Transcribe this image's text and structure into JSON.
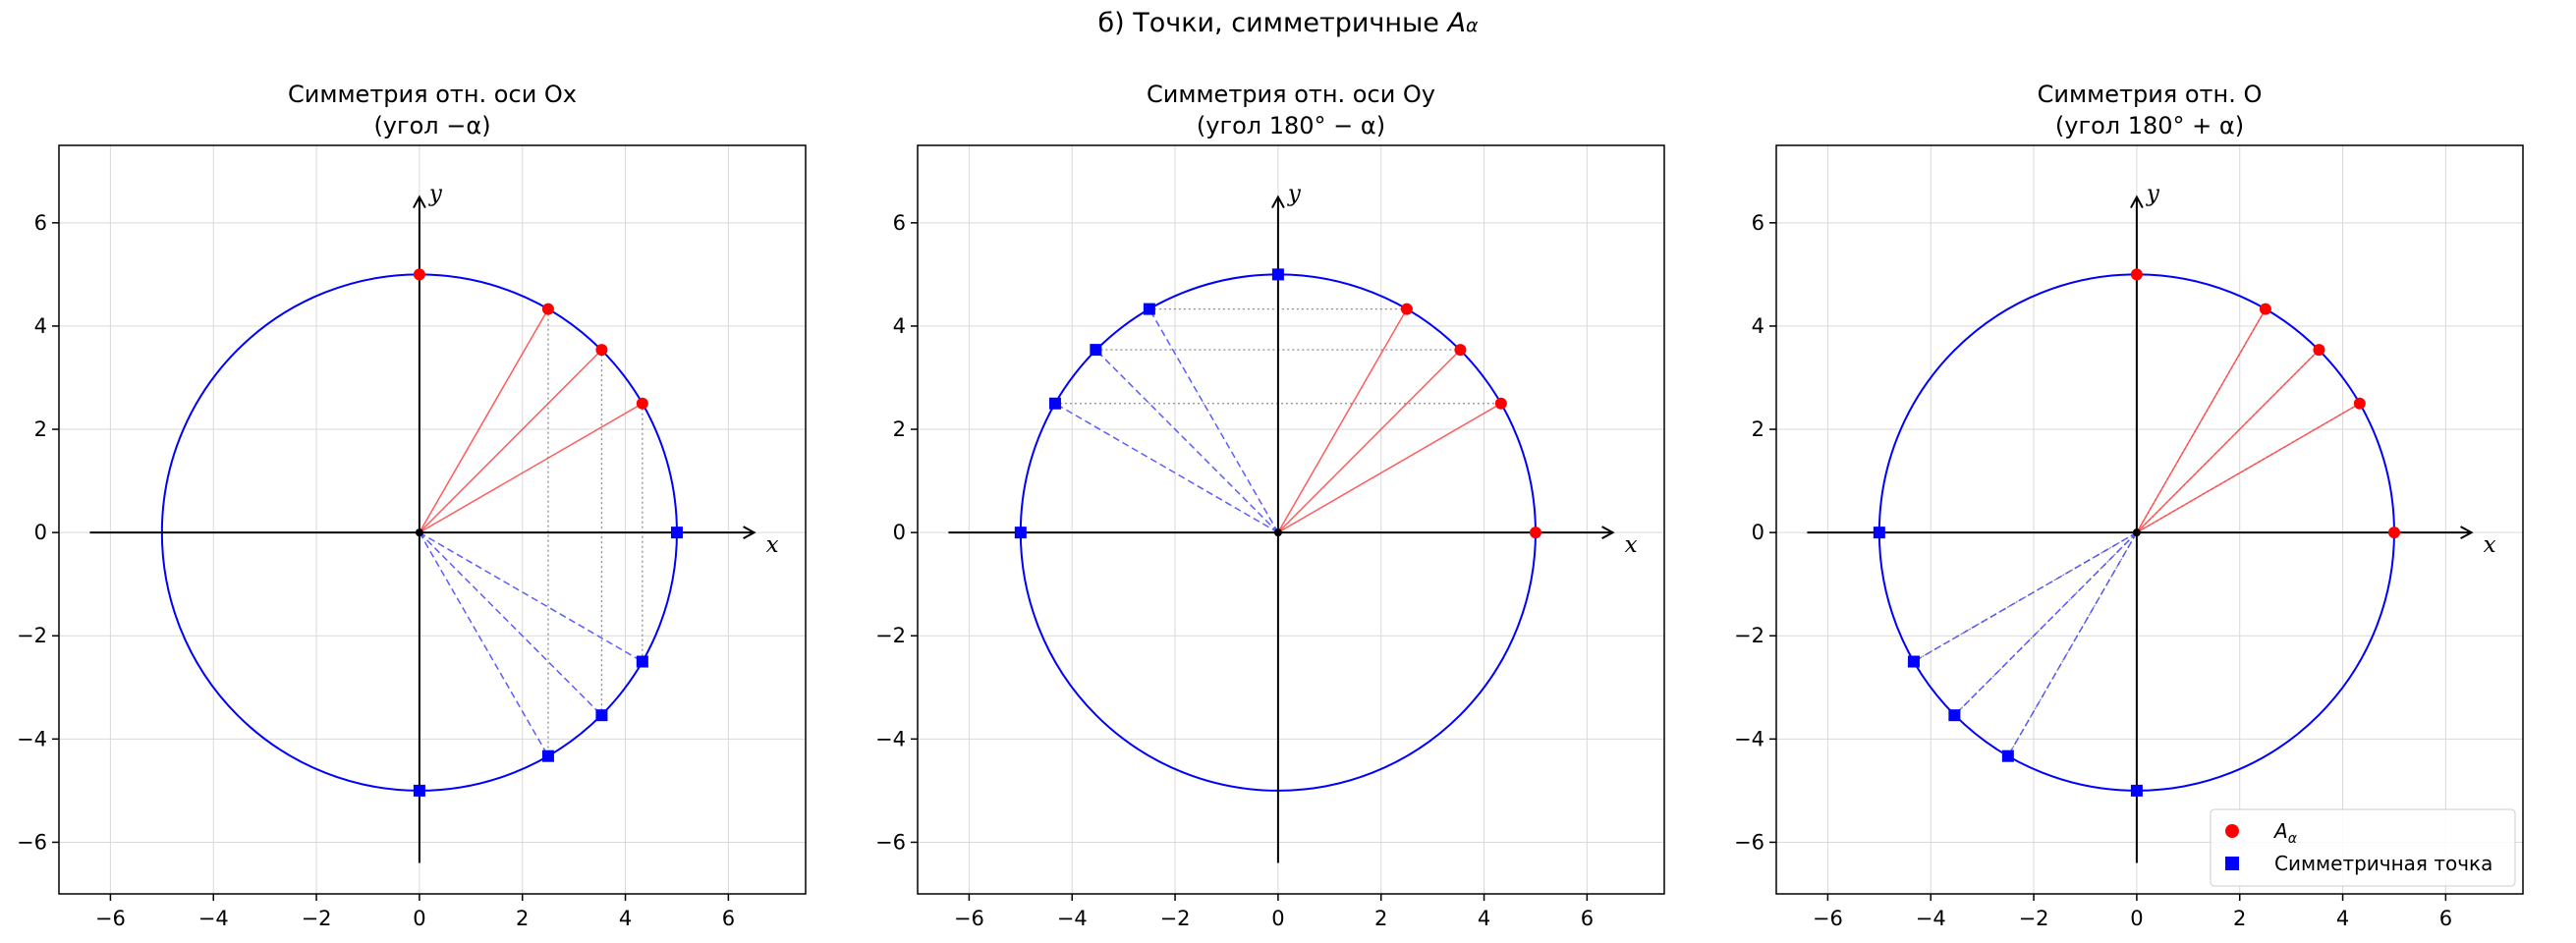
{
  "figure": {
    "suptitle_prefix": "б) Точки, симметричные ",
    "suptitle_math": "A",
    "suptitle_sub": "α"
  },
  "chart_data": [
    {
      "type": "scatter",
      "title_line1": "Симметрия отн. оси Ox",
      "title_line2": "(угол −α)",
      "xlabel": "x",
      "ylabel": "y",
      "xlim": [
        -7,
        7.5
      ],
      "ylim": [
        -7,
        7.5
      ],
      "xticks": [
        -6,
        -4,
        -2,
        0,
        2,
        4,
        6
      ],
      "yticks": [
        -6,
        -4,
        -2,
        0,
        2,
        4,
        6
      ],
      "grid": true,
      "circle": {
        "radius": 5,
        "color": "#0000ff"
      },
      "series": [
        {
          "marker": "circle",
          "color": "#ff0000",
          "points": [
            [
              0,
              5
            ],
            [
              2.5,
              4.33
            ],
            [
              3.54,
              3.54
            ],
            [
              4.33,
              2.5
            ]
          ]
        },
        {
          "marker": "square",
          "color": "#0000ff",
          "points": [
            [
              0,
              -5
            ],
            [
              2.5,
              -4.33
            ],
            [
              3.54,
              -3.54
            ],
            [
              4.33,
              -2.5
            ],
            [
              5,
              0
            ]
          ]
        }
      ],
      "radial_lines": [
        {
          "to": [
            2.5,
            4.33
          ],
          "style": "solid-red"
        },
        {
          "to": [
            3.54,
            3.54
          ],
          "style": "solid-red"
        },
        {
          "to": [
            4.33,
            2.5
          ],
          "style": "solid-red"
        },
        {
          "to": [
            2.5,
            -4.33
          ],
          "style": "dashed-blue"
        },
        {
          "to": [
            3.54,
            -3.54
          ],
          "style": "dashed-blue"
        },
        {
          "to": [
            4.33,
            -2.5
          ],
          "style": "dashed-blue"
        }
      ],
      "connectors": [
        [
          [
            2.5,
            4.33
          ],
          [
            2.5,
            -4.33
          ]
        ],
        [
          [
            3.54,
            3.54
          ],
          [
            3.54,
            -3.54
          ]
        ],
        [
          [
            4.33,
            2.5
          ],
          [
            4.33,
            -2.5
          ]
        ]
      ]
    },
    {
      "type": "scatter",
      "title_line1": "Симметрия отн. оси Oy",
      "title_line2": "(угол 180° − α)",
      "xlabel": "x",
      "ylabel": "y",
      "xlim": [
        -7,
        7.5
      ],
      "ylim": [
        -7,
        7.5
      ],
      "xticks": [
        -6,
        -4,
        -2,
        0,
        2,
        4,
        6
      ],
      "yticks": [
        -6,
        -4,
        -2,
        0,
        2,
        4,
        6
      ],
      "grid": true,
      "circle": {
        "radius": 5,
        "color": "#0000ff"
      },
      "series": [
        {
          "marker": "circle",
          "color": "#ff0000",
          "points": [
            [
              5,
              0
            ],
            [
              2.5,
              4.33
            ],
            [
              3.54,
              3.54
            ],
            [
              4.33,
              2.5
            ]
          ]
        },
        {
          "marker": "square",
          "color": "#0000ff",
          "points": [
            [
              -5,
              0
            ],
            [
              0,
              5
            ],
            [
              -2.5,
              4.33
            ],
            [
              -3.54,
              3.54
            ],
            [
              -4.33,
              2.5
            ]
          ]
        }
      ],
      "radial_lines": [
        {
          "to": [
            2.5,
            4.33
          ],
          "style": "solid-red"
        },
        {
          "to": [
            3.54,
            3.54
          ],
          "style": "solid-red"
        },
        {
          "to": [
            4.33,
            2.5
          ],
          "style": "solid-red"
        },
        {
          "to": [
            -2.5,
            4.33
          ],
          "style": "dashed-blue"
        },
        {
          "to": [
            -3.54,
            3.54
          ],
          "style": "dashed-blue"
        },
        {
          "to": [
            -4.33,
            2.5
          ],
          "style": "dashed-blue"
        }
      ],
      "connectors": [
        [
          [
            -2.5,
            4.33
          ],
          [
            2.5,
            4.33
          ]
        ],
        [
          [
            -3.54,
            3.54
          ],
          [
            3.54,
            3.54
          ]
        ],
        [
          [
            -4.33,
            2.5
          ],
          [
            4.33,
            2.5
          ]
        ]
      ]
    },
    {
      "type": "scatter",
      "title_line1": "Симметрия отн. O",
      "title_line2": "(угол 180° + α)",
      "xlabel": "x",
      "ylabel": "y",
      "xlim": [
        -7,
        7.5
      ],
      "ylim": [
        -7,
        7.5
      ],
      "xticks": [
        -6,
        -4,
        -2,
        0,
        2,
        4,
        6
      ],
      "yticks": [
        -6,
        -4,
        -2,
        0,
        2,
        4,
        6
      ],
      "grid": true,
      "circle": {
        "radius": 5,
        "color": "#0000ff"
      },
      "series": [
        {
          "marker": "circle",
          "color": "#ff0000",
          "points": [
            [
              0,
              5
            ],
            [
              5,
              0
            ],
            [
              2.5,
              4.33
            ],
            [
              3.54,
              3.54
            ],
            [
              4.33,
              2.5
            ]
          ]
        },
        {
          "marker": "square",
          "color": "#0000ff",
          "points": [
            [
              0,
              -5
            ],
            [
              -5,
              0
            ],
            [
              -2.5,
              -4.33
            ],
            [
              -3.54,
              -3.54
            ],
            [
              -4.33,
              -2.5
            ]
          ]
        }
      ],
      "radial_lines": [
        {
          "to": [
            2.5,
            4.33
          ],
          "style": "solid-red"
        },
        {
          "to": [
            3.54,
            3.54
          ],
          "style": "solid-red"
        },
        {
          "to": [
            4.33,
            2.5
          ],
          "style": "solid-red"
        },
        {
          "to": [
            -2.5,
            -4.33
          ],
          "style": "dashed-blue"
        },
        {
          "to": [
            -3.54,
            -3.54
          ],
          "style": "dashed-blue"
        },
        {
          "to": [
            -4.33,
            -2.5
          ],
          "style": "dashed-blue"
        }
      ],
      "connectors": [
        [
          [
            -2.5,
            -4.33
          ],
          [
            2.5,
            4.33
          ]
        ],
        [
          [
            -3.54,
            -3.54
          ],
          [
            3.54,
            3.54
          ]
        ],
        [
          [
            -4.33,
            -2.5
          ],
          [
            4.33,
            2.5
          ]
        ]
      ],
      "legend": {
        "position": "lower-right",
        "entries": [
          {
            "label": "A",
            "sub": "α",
            "marker": "circle",
            "color": "#ff0000"
          },
          {
            "label": "Симметричная точка",
            "marker": "square",
            "color": "#0000ff"
          }
        ]
      }
    }
  ]
}
